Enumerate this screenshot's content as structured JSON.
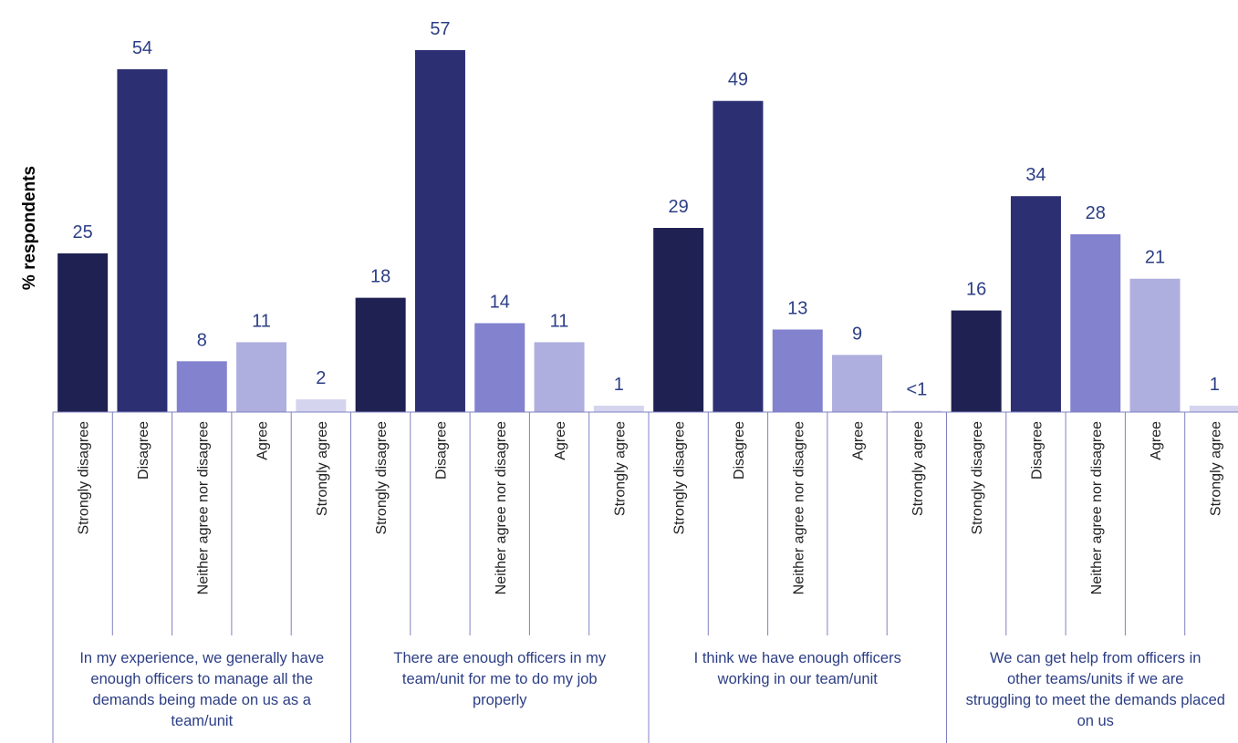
{
  "chart_data": {
    "type": "bar",
    "ylabel": "% respondents",
    "ylim": [
      0,
      57
    ],
    "grid": false,
    "legend": "none",
    "category_labels": [
      "Strongly disagree",
      "Disagree",
      "Neither agree nor disagree",
      "Agree",
      "Strongly agree"
    ],
    "colors": [
      "#1f2152",
      "#2c2f72",
      "#8282cf",
      "#aeaedf",
      "#d4d4ef"
    ],
    "text_color": "#2c3e85",
    "axis_color": "#8080c0",
    "groups": [
      {
        "label": "In my experience, we generally have enough officers to manage all the demands being made on us as a team/unit",
        "values": [
          25,
          54,
          8,
          11,
          2
        ],
        "value_labels": [
          "25",
          "54",
          "8",
          "11",
          "2"
        ]
      },
      {
        "label": "There are enough officers in my team/unit for me to do my job properly",
        "values": [
          18,
          57,
          14,
          11,
          1
        ],
        "value_labels": [
          "18",
          "57",
          "14",
          "11",
          "1"
        ]
      },
      {
        "label": "I think we have enough officers working in our team/unit",
        "values": [
          29,
          49,
          13,
          9,
          0.2
        ],
        "value_labels": [
          "29",
          "49",
          "13",
          "9",
          "<1"
        ]
      },
      {
        "label": "We can get help from officers in other teams/units if we are struggling to meet the demands placed on us",
        "values": [
          16,
          34,
          28,
          21,
          1
        ],
        "value_labels": [
          "16",
          "34",
          "28",
          "21",
          "1"
        ]
      }
    ]
  }
}
